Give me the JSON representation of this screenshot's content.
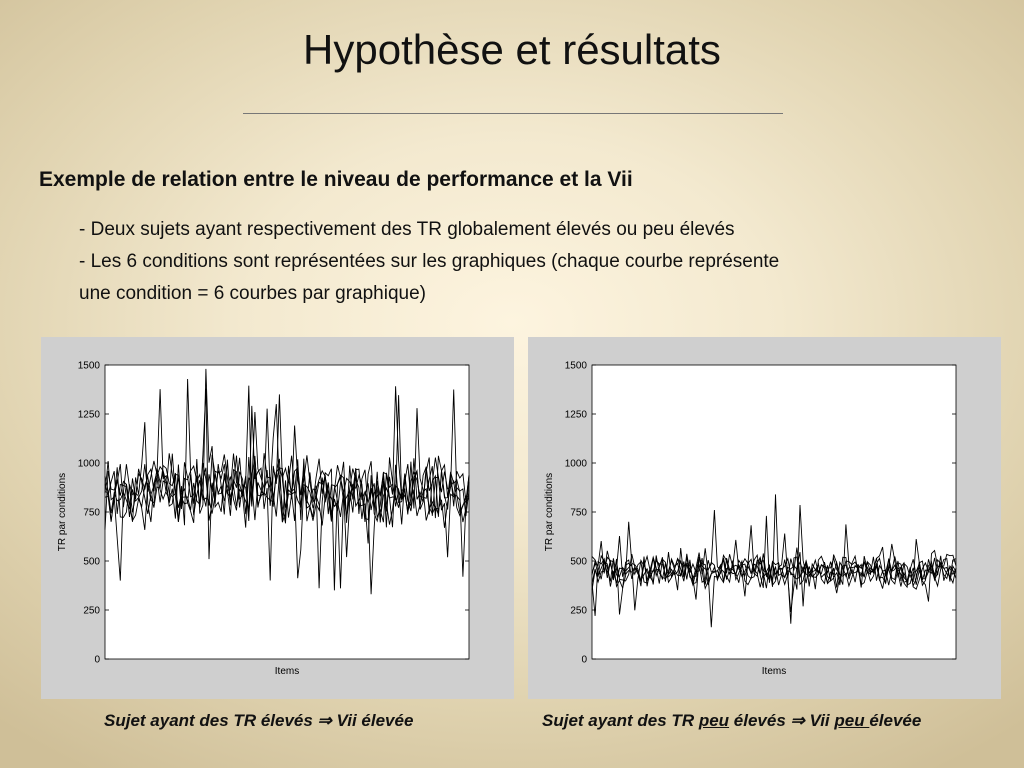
{
  "slide": {
    "title": "Hypothèse et résultats",
    "subheading": "Exemple de relation entre le niveau de performance et la Vii",
    "bullets": [
      "- Deux sujets ayant  respectivement des TR globalement élevés ou peu élevés",
      "- Les 6 conditions sont représentées sur les graphiques (chaque courbe  représente",
      "une condition = 6 courbes par graphique)"
    ],
    "captions": {
      "left": {
        "a": "Sujet ayant des TR élevés ",
        "arrow": "⇒",
        "b": " Vii élevée"
      },
      "right": {
        "a": "Sujet ayant des TR ",
        "u1": "peu",
        "b": " élevés ",
        "arrow": "⇒",
        "c": " Vii ",
        "u2": "peu ",
        "d": "élevée"
      }
    }
  },
  "chart_data": [
    {
      "type": "line",
      "title": "",
      "xlabel": "Items",
      "ylabel": "TR par conditions",
      "ylim": [
        0,
        1500
      ],
      "yticks": [
        0,
        250,
        500,
        750,
        1000,
        1250,
        1500
      ],
      "n_points": 120,
      "n_series": 6,
      "series_mean": 860,
      "series_spread": 130,
      "notable_peaks": [
        1375,
        1350,
        1280,
        1260
      ],
      "notable_dips": [
        350,
        360,
        400,
        420
      ]
    },
    {
      "type": "line",
      "title": "",
      "xlabel": "Items",
      "ylabel": "TR par conditions",
      "ylim": [
        0,
        1500
      ],
      "yticks": [
        0,
        250,
        500,
        750,
        1000,
        1250,
        1500
      ],
      "n_points": 120,
      "n_series": 6,
      "series_mean": 450,
      "series_spread": 65,
      "notable_peaks": [
        840,
        760,
        730,
        700
      ],
      "notable_dips": [
        180,
        220,
        240
      ]
    }
  ],
  "colors": {
    "line": "#000000",
    "panel": "#cfcfcf",
    "plot": "#ffffff"
  }
}
